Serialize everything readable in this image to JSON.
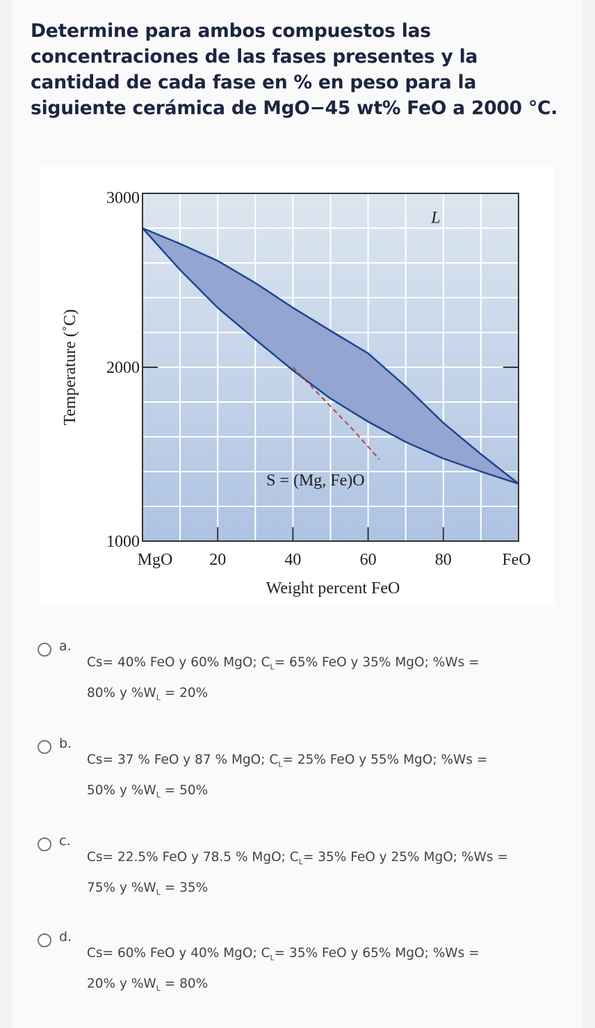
{
  "question": "Determine para ambos compuestos las concentraciones de las fases presentes y la cantidad de cada fase en % en peso para la siguiente cerámica de MgO−45 wt% FeO a 2000 °C.",
  "chart_data": {
    "type": "line",
    "title": "",
    "xlabel": "Weight percent FeO",
    "ylabel": "Temperature (˚C)",
    "xlim": [
      0,
      100
    ],
    "ylim": [
      1000,
      3000
    ],
    "x_tick_labels": [
      {
        "x": 0,
        "label": "MgO"
      },
      {
        "x": 20,
        "label": "20"
      },
      {
        "x": 40,
        "label": "40"
      },
      {
        "x": 60,
        "label": "60"
      },
      {
        "x": 80,
        "label": "80"
      },
      {
        "x": 100,
        "label": "FeO"
      }
    ],
    "y_tick_labels": [
      {
        "y": 1000,
        "label": "1000"
      },
      {
        "y": 2000,
        "label": "2000"
      },
      {
        "y": 3000,
        "label": "3000"
      }
    ],
    "grid": true,
    "series": [
      {
        "name": "liquidus",
        "x": [
          0,
          10,
          20,
          30,
          40,
          50,
          60,
          70,
          80,
          90,
          100
        ],
        "y": [
          2800,
          2710,
          2612,
          2485,
          2342,
          2210,
          2080,
          1890,
          1680,
          1500,
          1330
        ]
      },
      {
        "name": "solidus",
        "x": [
          0,
          10,
          20,
          30,
          40,
          50,
          60,
          70,
          80,
          90,
          100
        ],
        "y": [
          2800,
          2560,
          2342,
          2160,
          1982,
          1820,
          1687,
          1570,
          1475,
          1400,
          1330
        ]
      },
      {
        "name": "dashed",
        "x": [
          40,
          48,
          56,
          63
        ],
        "y": [
          2000,
          1820,
          1640,
          1470
        ]
      }
    ],
    "annotations": [
      {
        "text": "L",
        "x": 78,
        "y": 2830
      },
      {
        "text": "S = (Mg, Fe)O",
        "x": 46,
        "y": 1320
      }
    ],
    "colors": {
      "region": "#93a5d0",
      "line": "#1f4590",
      "dashed": "#b2463a",
      "bg_top": "#dce6ef",
      "bg_bottom": "#aec3e3"
    }
  },
  "options": [
    {
      "letter": "a.",
      "line1": "Cs= 40% FeO y 60% MgO; C",
      "sub1": "L",
      "line1b": "= 65% FeO y 35% MgO; %Ws =",
      "line2": "80% y %W",
      "sub2": "L",
      "line2b": " = 20%"
    },
    {
      "letter": "b.",
      "line1": "Cs= 37 % FeO y 87 % MgO; C",
      "sub1": "L",
      "line1b": "= 25% FeO y 55% MgO; %Ws =",
      "line2": "50% y %W",
      "sub2": "L",
      "line2b": " = 50%"
    },
    {
      "letter": "c.",
      "line1": "Cs= 22.5% FeO y 78.5 % MgO; C",
      "sub1": "L",
      "line1b": "= 35% FeO y 25% MgO; %Ws =",
      "line2": "75% y %W",
      "sub2": "L",
      "line2b": " = 35%"
    },
    {
      "letter": "d.",
      "line1": "Cs= 60% FeO y 40% MgO; C",
      "sub1": "L",
      "line1b": "= 35% FeO y 65% MgO; %Ws =",
      "line2": "20% y %W",
      "sub2": "L",
      "line2b": " = 80%"
    }
  ]
}
